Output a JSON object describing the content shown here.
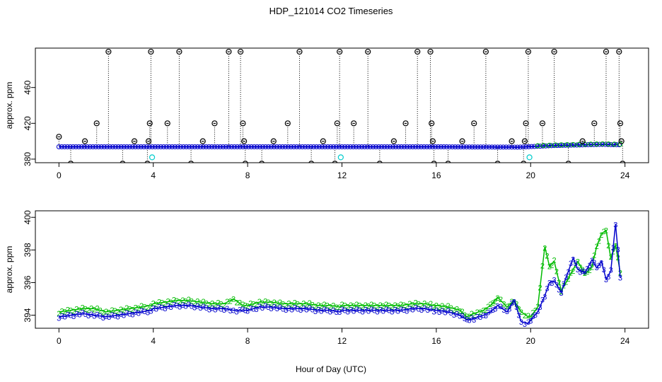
{
  "title": "HDP_121014  CO2 Timeseries",
  "xlabel": "Hour of Day (UTC)",
  "colors": {
    "black": "#000000",
    "blue": "#0000cc",
    "green": "#00bb00",
    "cyan": "#00cccc"
  },
  "chart_data": [
    {
      "type": "scatter",
      "panel": "top",
      "ylabel": "approx. ppm",
      "xlim": [
        -1,
        25
      ],
      "ylim": [
        376,
        504
      ],
      "xticks": [
        0,
        4,
        8,
        12,
        16,
        20,
        24
      ],
      "yticks": [
        380,
        420,
        460
      ],
      "ytick_labels": [
        "380",
        "420",
        "460"
      ],
      "xtick_labels": [
        "0",
        "4",
        "8",
        "12",
        "16",
        "20",
        "24"
      ],
      "baseline": [
        [
          0,
          393.8
        ],
        [
          4,
          393.8
        ],
        [
          8,
          393.8
        ],
        [
          12,
          393.8
        ],
        [
          16,
          393.8
        ],
        [
          17.5,
          393.6
        ],
        [
          19.5,
          393.4
        ],
        [
          20,
          394.0
        ],
        [
          21,
          395.2
        ],
        [
          22,
          395.8
        ],
        [
          23,
          396.5
        ],
        [
          23.8,
          396.0
        ]
      ],
      "outliers": [
        [
          0.0,
          405
        ],
        [
          0.5,
          375
        ],
        [
          1.1,
          400
        ],
        [
          1.6,
          420
        ],
        [
          2.1,
          500
        ],
        [
          2.7,
          375
        ],
        [
          3.2,
          400
        ],
        [
          3.75,
          375
        ],
        [
          3.8,
          400
        ],
        [
          3.85,
          420
        ],
        [
          3.9,
          500
        ],
        [
          4.6,
          420
        ],
        [
          5.1,
          500
        ],
        [
          5.6,
          375
        ],
        [
          6.1,
          400
        ],
        [
          6.6,
          420
        ],
        [
          7.2,
          500
        ],
        [
          7.7,
          500
        ],
        [
          7.8,
          420
        ],
        [
          7.85,
          400
        ],
        [
          7.9,
          375
        ],
        [
          8.6,
          375
        ],
        [
          9.1,
          400
        ],
        [
          9.7,
          420
        ],
        [
          10.2,
          500
        ],
        [
          10.7,
          375
        ],
        [
          11.2,
          400
        ],
        [
          11.7,
          375
        ],
        [
          11.8,
          420
        ],
        [
          11.9,
          500
        ],
        [
          12.5,
          420
        ],
        [
          13.1,
          500
        ],
        [
          13.6,
          375
        ],
        [
          14.2,
          400
        ],
        [
          14.7,
          420
        ],
        [
          15.2,
          500
        ],
        [
          15.75,
          500
        ],
        [
          15.8,
          420
        ],
        [
          15.85,
          400
        ],
        [
          15.9,
          375
        ],
        [
          16.5,
          375
        ],
        [
          17.1,
          400
        ],
        [
          17.6,
          420
        ],
        [
          18.1,
          500
        ],
        [
          18.6,
          375
        ],
        [
          19.2,
          400
        ],
        [
          19.7,
          375
        ],
        [
          19.75,
          400
        ],
        [
          19.8,
          420
        ],
        [
          19.9,
          500
        ],
        [
          20.5,
          420
        ],
        [
          21.0,
          500
        ],
        [
          21.6,
          375
        ],
        [
          22.2,
          400
        ],
        [
          22.7,
          420
        ],
        [
          23.2,
          500
        ],
        [
          23.75,
          500
        ],
        [
          23.8,
          420
        ],
        [
          23.85,
          400
        ],
        [
          23.9,
          375
        ]
      ],
      "flagged": [
        [
          3.95,
          382
        ],
        [
          11.95,
          382
        ],
        [
          19.95,
          382
        ]
      ]
    },
    {
      "type": "line",
      "panel": "bottom",
      "ylabel": "approx. ppm",
      "xlim": [
        -1,
        25
      ],
      "ylim": [
        393.2,
        400.4
      ],
      "xticks": [
        0,
        4,
        8,
        12,
        16,
        20,
        24
      ],
      "xtick_labels": [
        "0",
        "4",
        "8",
        "12",
        "16",
        "20",
        "24"
      ],
      "yticks": [
        394,
        396,
        398,
        400
      ],
      "ytick_labels": [
        "394",
        "396",
        "398",
        "400"
      ],
      "series": [
        {
          "marker": "2",
          "color": "#00bb00",
          "points": [
            [
              0.0,
              394.2
            ],
            [
              0.5,
              394.3
            ],
            [
              1.0,
              394.4
            ],
            [
              1.5,
              394.4
            ],
            [
              2.0,
              394.2
            ],
            [
              2.5,
              394.3
            ],
            [
              3.0,
              394.4
            ],
            [
              3.5,
              394.5
            ],
            [
              3.9,
              394.6
            ],
            [
              4.0,
              394.7
            ],
            [
              4.5,
              394.8
            ],
            [
              5.0,
              394.9
            ],
            [
              5.5,
              394.9
            ],
            [
              6.0,
              394.8
            ],
            [
              6.5,
              394.7
            ],
            [
              7.0,
              394.7
            ],
            [
              7.4,
              395.0
            ],
            [
              7.8,
              394.6
            ],
            [
              8.0,
              394.6
            ],
            [
              8.5,
              394.8
            ],
            [
              9.0,
              394.8
            ],
            [
              9.5,
              394.7
            ],
            [
              10.0,
              394.7
            ],
            [
              10.5,
              394.7
            ],
            [
              11.0,
              394.6
            ],
            [
              11.5,
              394.6
            ],
            [
              11.9,
              394.5
            ],
            [
              12.0,
              394.6
            ],
            [
              12.5,
              394.6
            ],
            [
              13.0,
              394.6
            ],
            [
              13.5,
              394.6
            ],
            [
              14.0,
              394.6
            ],
            [
              14.5,
              394.6
            ],
            [
              15.0,
              394.7
            ],
            [
              15.5,
              394.7
            ],
            [
              15.9,
              394.6
            ],
            [
              16.0,
              394.6
            ],
            [
              16.5,
              394.5
            ],
            [
              17.0,
              394.3
            ],
            [
              17.3,
              393.9
            ],
            [
              17.6,
              394.1
            ],
            [
              18.0,
              394.3
            ],
            [
              18.3,
              394.6
            ],
            [
              18.6,
              395.1
            ],
            [
              19.0,
              394.5
            ],
            [
              19.3,
              394.9
            ],
            [
              19.6,
              394.2
            ],
            [
              19.9,
              393.9
            ],
            [
              20.0,
              393.9
            ],
            [
              20.3,
              394.5
            ],
            [
              20.6,
              398.2
            ],
            [
              20.8,
              397.0
            ],
            [
              21.0,
              397.3
            ],
            [
              21.3,
              395.5
            ],
            [
              21.5,
              396.0
            ],
            [
              21.8,
              396.8
            ],
            [
              22.0,
              397.3
            ],
            [
              22.3,
              396.5
            ],
            [
              22.6,
              397.0
            ],
            [
              22.8,
              398.2
            ],
            [
              23.0,
              399.0
            ],
            [
              23.2,
              399.2
            ],
            [
              23.4,
              397.5
            ],
            [
              23.6,
              398.3
            ],
            [
              23.8,
              396.6
            ]
          ]
        },
        {
          "marker": "3",
          "color": "#0000cc",
          "points": [
            [
              0.0,
              393.9
            ],
            [
              0.5,
              394.0
            ],
            [
              1.0,
              394.1
            ],
            [
              1.5,
              394.0
            ],
            [
              2.0,
              393.9
            ],
            [
              2.5,
              394.0
            ],
            [
              3.0,
              394.1
            ],
            [
              3.5,
              394.2
            ],
            [
              3.9,
              394.3
            ],
            [
              4.0,
              394.4
            ],
            [
              4.5,
              394.5
            ],
            [
              5.0,
              394.6
            ],
            [
              5.5,
              394.6
            ],
            [
              6.0,
              394.5
            ],
            [
              6.5,
              394.4
            ],
            [
              7.0,
              394.4
            ],
            [
              7.4,
              394.3
            ],
            [
              7.8,
              394.3
            ],
            [
              8.0,
              394.3
            ],
            [
              8.5,
              394.5
            ],
            [
              9.0,
              394.5
            ],
            [
              9.5,
              394.4
            ],
            [
              10.0,
              394.4
            ],
            [
              10.5,
              394.4
            ],
            [
              11.0,
              394.3
            ],
            [
              11.5,
              394.3
            ],
            [
              11.9,
              394.2
            ],
            [
              12.0,
              394.3
            ],
            [
              12.5,
              394.3
            ],
            [
              13.0,
              394.3
            ],
            [
              13.5,
              394.3
            ],
            [
              14.0,
              394.3
            ],
            [
              14.5,
              394.3
            ],
            [
              15.0,
              394.4
            ],
            [
              15.5,
              394.4
            ],
            [
              15.9,
              394.3
            ],
            [
              16.0,
              394.3
            ],
            [
              16.5,
              394.2
            ],
            [
              17.0,
              394.0
            ],
            [
              17.3,
              393.7
            ],
            [
              17.6,
              393.8
            ],
            [
              18.0,
              394.0
            ],
            [
              18.3,
              394.2
            ],
            [
              18.6,
              394.6
            ],
            [
              19.0,
              394.2
            ],
            [
              19.3,
              394.9
            ],
            [
              19.6,
              393.6
            ],
            [
              19.9,
              393.5
            ],
            [
              20.0,
              393.7
            ],
            [
              20.3,
              394.2
            ],
            [
              20.6,
              395.2
            ],
            [
              20.8,
              396.0
            ],
            [
              21.0,
              396.1
            ],
            [
              21.3,
              395.4
            ],
            [
              21.5,
              396.3
            ],
            [
              21.8,
              397.5
            ],
            [
              22.0,
              396.8
            ],
            [
              22.3,
              396.6
            ],
            [
              22.6,
              397.4
            ],
            [
              22.8,
              396.9
            ],
            [
              23.0,
              397.3
            ],
            [
              23.2,
              396.2
            ],
            [
              23.4,
              396.7
            ],
            [
              23.6,
              399.6
            ],
            [
              23.8,
              396.3
            ]
          ]
        }
      ]
    }
  ]
}
